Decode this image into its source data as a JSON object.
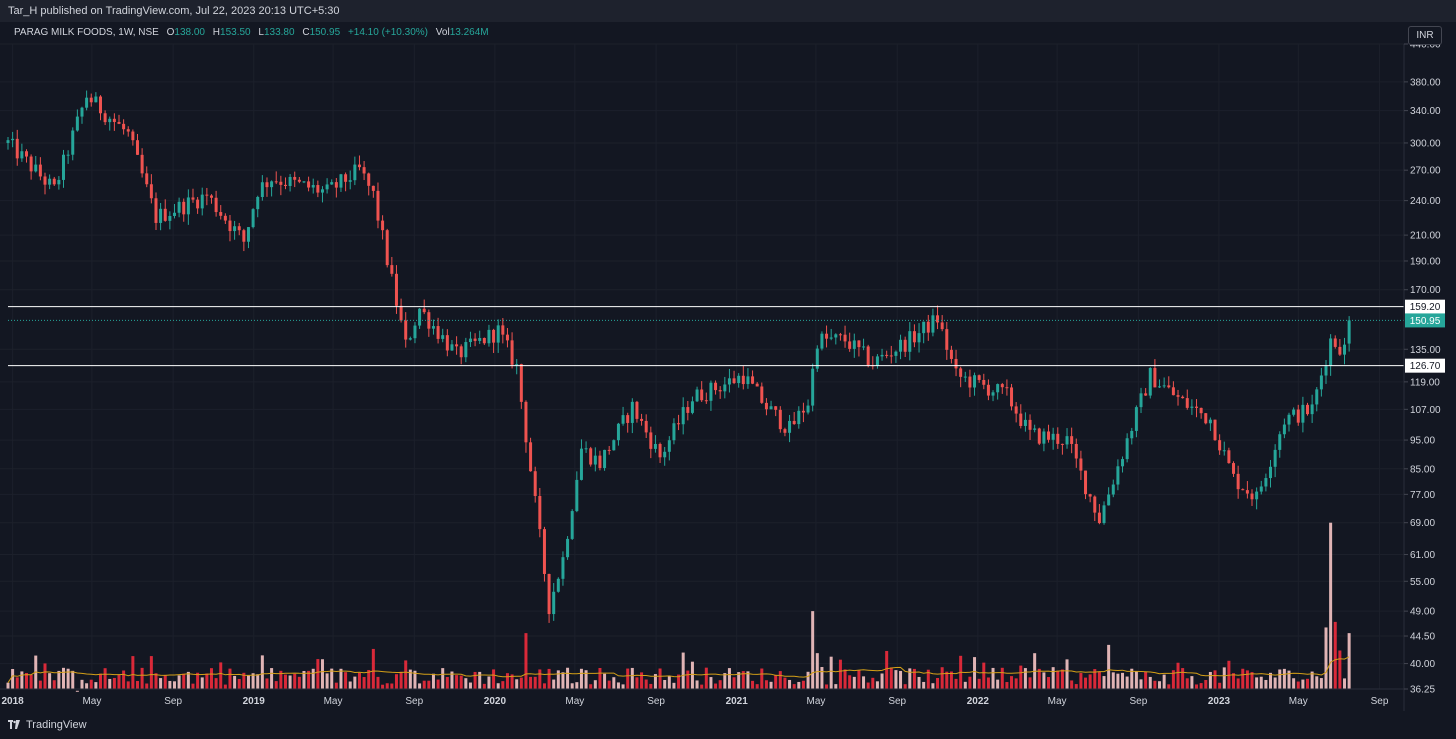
{
  "header": {
    "publish_text": "Tar_H published on TradingView.com, Jul 22, 2023 20:13 UTC+5:30"
  },
  "legend": {
    "symbol": "PARAG MILK FOODS, 1W, NSE",
    "open_label": "O",
    "open": "138.00",
    "high_label": "H",
    "high": "153.50",
    "low_label": "L",
    "low": "133.80",
    "close_label": "C",
    "close": "150.95",
    "change": "+14.10 (+10.30%)",
    "vol_label": "Vol",
    "vol": "13.264M"
  },
  "currency": "INR",
  "footer": {
    "brand": "TradingView"
  },
  "colors": {
    "up": "#26a69a",
    "down": "#ef5350",
    "vol_up": "#f7c5c5",
    "vol_down": "#ef2b3c",
    "ma": "#d4a017",
    "background": "#131722"
  },
  "chart_data": {
    "type": "candlestick",
    "y_scale": "log",
    "ylim": [
      36.25,
      440
    ],
    "y_ticks": [
      "440.00",
      "380.00",
      "340.00",
      "300.00",
      "270.00",
      "240.00",
      "210.00",
      "190.00",
      "170.00",
      "135.00",
      "119.00",
      "107.00",
      "95.00",
      "85.00",
      "77.00",
      "69.00",
      "61.00",
      "55.00",
      "49.00",
      "44.50",
      "40.00",
      "36.25"
    ],
    "x_ticks": [
      "2018",
      "May",
      "Sep",
      "2019",
      "May",
      "Sep",
      "2020",
      "May",
      "Sep",
      "2021",
      "May",
      "Sep",
      "2022",
      "May",
      "Sep",
      "2023",
      "May",
      "Sep"
    ],
    "horizontal_levels": [
      159.2,
      126.7
    ],
    "level_labels": [
      "159.20",
      "126.70"
    ],
    "last_price": 150.95,
    "last_price_label": "150.95",
    "anchors": [
      [
        "2017-12-25",
        300
      ],
      [
        "2018-03-05",
        250
      ],
      [
        "2018-04-23",
        360
      ],
      [
        "2018-06-25",
        310
      ],
      [
        "2018-08-06",
        225
      ],
      [
        "2018-10-22",
        245
      ],
      [
        "2018-12-17",
        205
      ],
      [
        "2019-01-07",
        250
      ],
      [
        "2019-01-28",
        262
      ],
      [
        "2019-04-22",
        248
      ],
      [
        "2019-06-10",
        270
      ],
      [
        "2019-07-01",
        245
      ],
      [
        "2019-08-19",
        137
      ],
      [
        "2019-09-09",
        158
      ],
      [
        "2019-11-04",
        132
      ],
      [
        "2020-01-06",
        145
      ],
      [
        "2020-02-03",
        126
      ],
      [
        "2020-03-23",
        50
      ],
      [
        "2020-04-13",
        60
      ],
      [
        "2020-05-11",
        92
      ],
      [
        "2020-06-08",
        87
      ],
      [
        "2020-07-27",
        108
      ],
      [
        "2020-09-07",
        89
      ],
      [
        "2020-10-26",
        112
      ],
      [
        "2020-12-14",
        118
      ],
      [
        "2021-01-11",
        122
      ],
      [
        "2021-02-15",
        108
      ],
      [
        "2021-03-22",
        99
      ],
      [
        "2021-04-19",
        110
      ],
      [
        "2021-05-03",
        140
      ],
      [
        "2021-06-14",
        140
      ],
      [
        "2021-07-26",
        128
      ],
      [
        "2021-09-20",
        140
      ],
      [
        "2021-11-01",
        152
      ],
      [
        "2021-11-29",
        122
      ],
      [
        "2022-02-14",
        113
      ],
      [
        "2022-03-21",
        97
      ],
      [
        "2022-05-16",
        95
      ],
      [
        "2022-07-04",
        70
      ],
      [
        "2022-08-22",
        100
      ],
      [
        "2022-09-19",
        122
      ],
      [
        "2022-11-07",
        110
      ],
      [
        "2022-12-19",
        103
      ],
      [
        "2023-01-23",
        82
      ],
      [
        "2023-02-27",
        76
      ],
      [
        "2023-04-10",
        103
      ],
      [
        "2023-05-22",
        107
      ],
      [
        "2023-06-19",
        140
      ],
      [
        "2023-07-10",
        135
      ],
      [
        "2023-07-17",
        150.95
      ]
    ],
    "volume_spikes": [
      [
        "2018-04-09",
        36
      ],
      [
        "2020-02-17",
        45
      ],
      [
        "2021-04-26",
        49
      ],
      [
        "2022-07-18",
        43
      ],
      [
        "2023-06-12",
        46
      ],
      [
        "2023-06-19",
        69
      ],
      [
        "2023-06-26",
        47
      ],
      [
        "2023-07-17",
        45
      ]
    ]
  }
}
